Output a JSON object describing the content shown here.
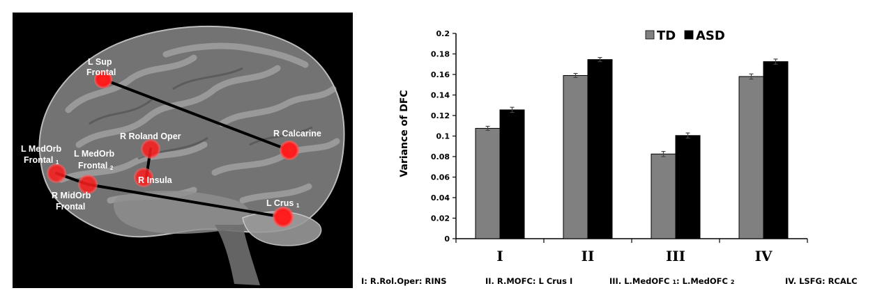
{
  "brain": {
    "labels": {
      "l_sup_frontal_1": "L Sup",
      "l_sup_frontal_2": "Frontal",
      "r_calcarine": "R Calcarine",
      "r_roland_oper": "R Roland Oper",
      "l_medorb_frontal2_1": "L MedOrb",
      "l_medorb_frontal2_2": "Frontal",
      "l_medorb_frontal2_sub": "2",
      "l_medorb_frontal1_1": "L MedOrb",
      "l_medorb_frontal1_2": "Frontal",
      "l_medorb_frontal1_sub": "1",
      "r_insula": "R Insula",
      "r_midorb_frontal_1": "R MidOrb",
      "r_midorb_frontal_2": "Frontal",
      "l_crus": "L Crus",
      "l_crus_sub": "1"
    },
    "node_color": "#ff1a1a"
  },
  "chart_data": {
    "type": "bar",
    "categories": [
      "I",
      "II",
      "III",
      "IV"
    ],
    "series": [
      {
        "name": "TD",
        "values": [
          0.1075,
          0.159,
          0.0825,
          0.158
        ],
        "errors": [
          0.002,
          0.002,
          0.0025,
          0.0025
        ],
        "color": "#808080"
      },
      {
        "name": "ASD",
        "values": [
          0.1255,
          0.1745,
          0.1005,
          0.1725
        ],
        "errors": [
          0.0025,
          0.002,
          0.0025,
          0.0025
        ],
        "color": "#000000"
      }
    ],
    "ylabel": "Variance of DFC",
    "ylim": [
      0,
      0.2
    ],
    "yticks": [
      "0",
      "0.02",
      "0.04",
      "0.06",
      "0.08",
      "0.1",
      "0.12",
      "0.14",
      "0.16",
      "0.18",
      "0.2"
    ],
    "legend_position": "top-right",
    "grid": false
  },
  "footnotes": {
    "i": "I: R.Rol.Oper: RINS",
    "ii": "II. R.MOFC: L Crus I",
    "iii_a": "III. L.MedOFC",
    "iii_sub1": "1",
    "iii_b": ": L.MedOFC",
    "iii_sub2": "2",
    "iv": "IV. LSFG: RCALC"
  }
}
